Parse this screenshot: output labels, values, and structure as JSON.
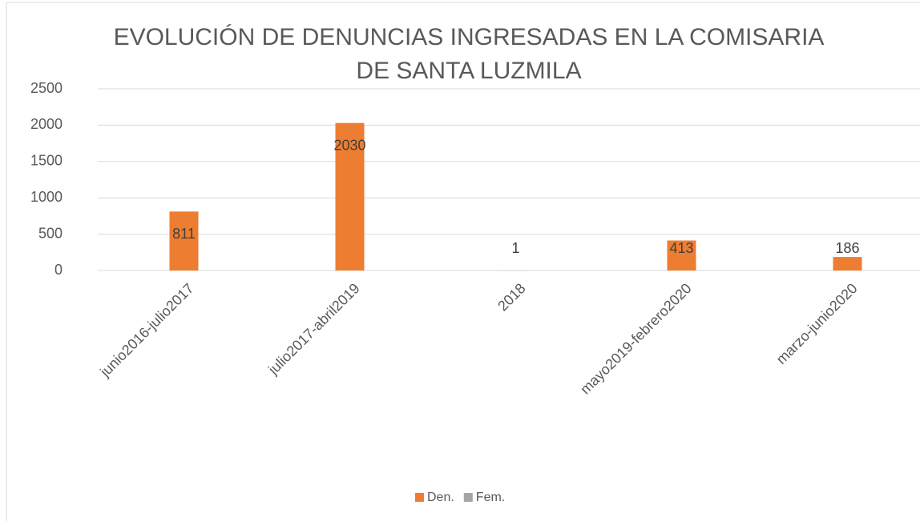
{
  "chart_data": {
    "type": "bar",
    "title": [
      "EVOLUCIÓN DE DENUNCIAS INGRESADAS EN LA COMISARIA",
      "DE SANTA LUZMILA"
    ],
    "categories": [
      "junio2016-julio2017",
      "julio2017-abril2019",
      "2018",
      "mayo2019-febrero2020",
      "marzo-junio2020"
    ],
    "series": [
      {
        "name": "Den.",
        "color": "#ed7d31",
        "values": [
          811,
          2030,
          1,
          413,
          186
        ]
      },
      {
        "name": "Fem.",
        "color": "#a5a5a5",
        "values": [
          null,
          null,
          null,
          null,
          null
        ]
      }
    ],
    "ylim": [
      0,
      2500
    ],
    "yticks": [
      0,
      500,
      1000,
      1500,
      2000,
      2500
    ],
    "grid": true,
    "legend": "bottom"
  }
}
